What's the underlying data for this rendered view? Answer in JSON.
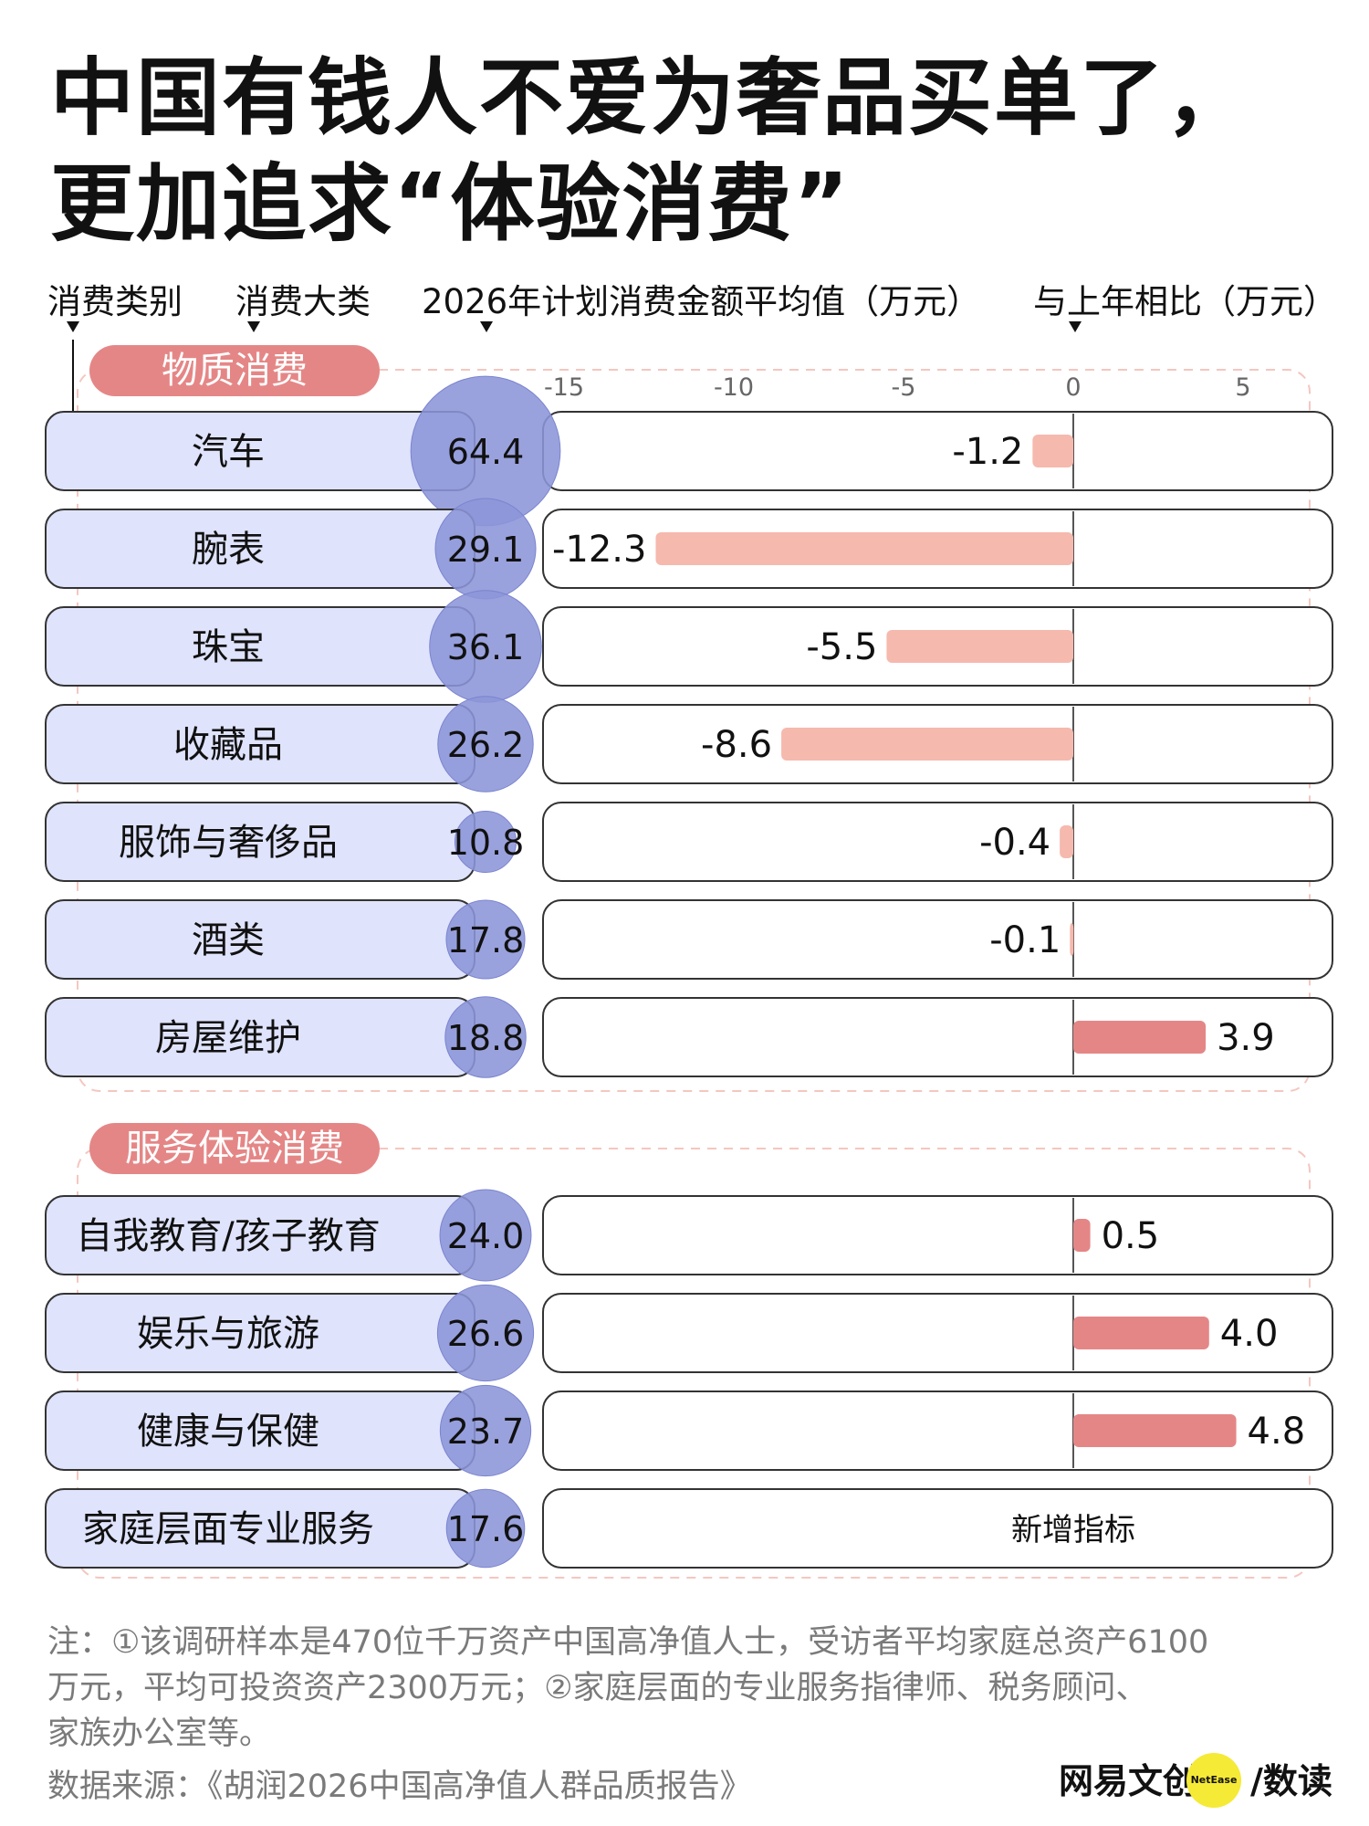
{
  "title": {
    "line1": "中国有钱人不爱为奢品买单了，",
    "line2": "更加追求“体验消费”"
  },
  "column_headers": {
    "category": "消费类别",
    "major_class": "消费大类",
    "avg_amount": "2026年计划消费金额平均值（万元）",
    "yoy": "与上年相比（万元）"
  },
  "chart_data": {
    "type": "bar",
    "x_axis_ticks": [
      -15,
      -10,
      -5,
      0,
      5
    ],
    "xlim": [
      -15.5,
      7
    ],
    "sections": [
      {
        "name": "物质消费",
        "items": [
          {
            "label": "汽车",
            "avg": "64.4",
            "change": -1.2,
            "change_label": "-1.2"
          },
          {
            "label": "腕表",
            "avg": "29.1",
            "change": -12.3,
            "change_label": "-12.3"
          },
          {
            "label": "珠宝",
            "avg": "36.1",
            "change": -5.5,
            "change_label": "-5.5"
          },
          {
            "label": "收藏品",
            "avg": "26.2",
            "change": -8.6,
            "change_label": "-8.6"
          },
          {
            "label": "服饰与奢侈品",
            "avg": "10.8",
            "change": -0.4,
            "change_label": "-0.4"
          },
          {
            "label": "酒类",
            "avg": "17.8",
            "change": -0.1,
            "change_label": "-0.1"
          },
          {
            "label": "房屋维护",
            "avg": "18.8",
            "change": 3.9,
            "change_label": "3.9"
          }
        ]
      },
      {
        "name": "服务体验消费",
        "items": [
          {
            "label": "自我教育/孩子教育",
            "avg": "24.0",
            "change": 0.5,
            "change_label": "0.5"
          },
          {
            "label": "娱乐与旅游",
            "avg": "26.6",
            "change": 4.0,
            "change_label": "4.0"
          },
          {
            "label": "健康与保健",
            "avg": "23.7",
            "change": 4.8,
            "change_label": "4.8"
          },
          {
            "label": "家庭层面专业服务",
            "avg": "17.6",
            "change": null,
            "change_label": "新增指标"
          }
        ]
      }
    ]
  },
  "colors": {
    "label_fill": "#dfe3fb",
    "bubble": "#8c95d8",
    "negative_bar": "#f6b9ad",
    "positive_bar": "#e58686",
    "section_pill": "#e58686",
    "dashed_border": "#f4c7c0"
  },
  "notes": {
    "line1": "注：①该调研样本是470位千万资产中国高净值人士，受访者平均家庭总资产6100",
    "line2": "万元，平均可投资资产2300万元；②家庭层面的专业服务指律师、税务顾问、",
    "line3": "家族办公室等。",
    "source": "数据来源：《胡润2026中国高净值人群品质报告》"
  },
  "brand": {
    "name": "网易文创",
    "dot": "NetEase",
    "sub": "/数读"
  }
}
